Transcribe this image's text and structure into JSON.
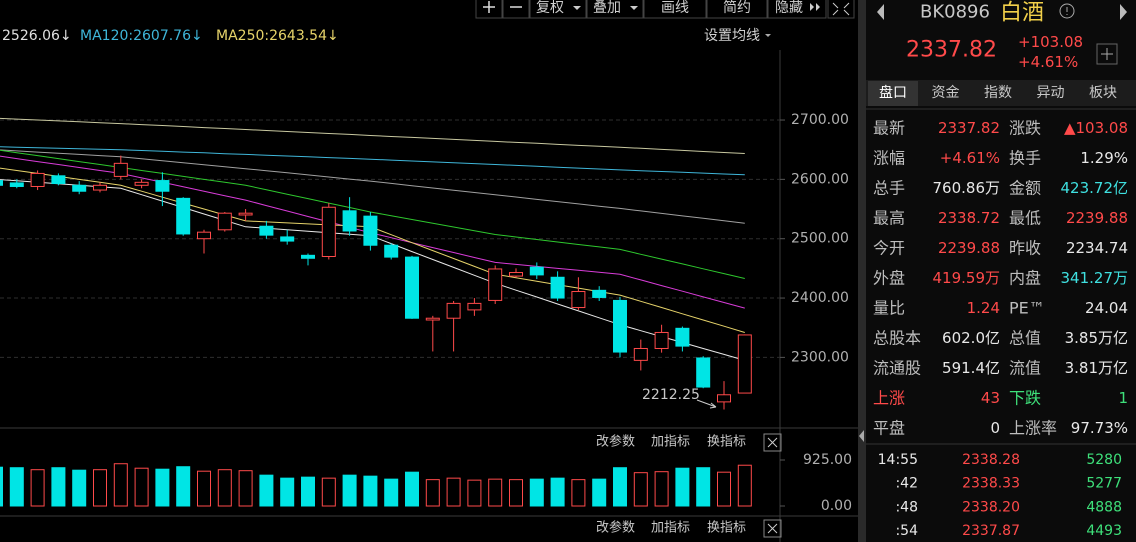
{
  "toolbar": [
    "复权",
    "叠加",
    "画线",
    "简约",
    "隐藏"
  ],
  "ma_legend": [
    {
      "text": "2526.06↓",
      "color": "#e0e0e0"
    },
    {
      "text": "MA120:2607.76↓",
      "color": "#3fb6d9"
    },
    {
      "text": "MA250:2643.54↓",
      "color": "#e6d36a"
    }
  ],
  "ma_settings": "设置均线",
  "chart_data": {
    "type": "candlestick",
    "categories": [
      null,
      null,
      null,
      null,
      null,
      null,
      null,
      null,
      null,
      null,
      null,
      null,
      null,
      null,
      null,
      null,
      null,
      null,
      null,
      null,
      null,
      null,
      null,
      null,
      null,
      null,
      null,
      null,
      null,
      null,
      null,
      null,
      null,
      null,
      null,
      null,
      null
    ],
    "open": [
      2598,
      2594,
      2588,
      2606,
      2590,
      2582,
      2605,
      2590,
      2598,
      2568,
      2500,
      2515,
      2540,
      2521,
      2503,
      2472,
      2470,
      2547,
      2538,
      2489,
      2469,
      2363,
      2366,
      2380,
      2396,
      2437,
      2452,
      2435,
      2384,
      2413,
      2396,
      2295,
      2315,
      2349,
      2299,
      2225,
      2239.88
    ],
    "high": [
      2602,
      2600,
      2615,
      2610,
      2597,
      2595,
      2640,
      2600,
      2612,
      2570,
      2515,
      2545,
      2550,
      2530,
      2515,
      2475,
      2560,
      2570,
      2545,
      2492,
      2471,
      2370,
      2395,
      2400,
      2455,
      2450,
      2460,
      2445,
      2435,
      2420,
      2402,
      2330,
      2355,
      2352,
      2302,
      2260,
      2338.72
    ],
    "low": [
      2585,
      2585,
      2582,
      2590,
      2575,
      2578,
      2600,
      2585,
      2555,
      2505,
      2475,
      2512,
      2530,
      2500,
      2490,
      2455,
      2465,
      2505,
      2480,
      2465,
      2365,
      2310,
      2310,
      2370,
      2390,
      2435,
      2432,
      2395,
      2380,
      2395,
      2300,
      2278,
      2308,
      2310,
      2248,
      2212.25,
      2239.88
    ],
    "close": [
      2590,
      2588,
      2610,
      2593,
      2580,
      2590,
      2627,
      2595,
      2580,
      2508,
      2511,
      2543,
      2543,
      2506,
      2496,
      2467,
      2553,
      2513,
      2489,
      2469,
      2366,
      2366,
      2391,
      2391,
      2449,
      2443,
      2439,
      2400,
      2411,
      2401,
      2309,
      2315,
      2342,
      2319,
      2250,
      2237,
      2337.82
    ],
    "up_color": "#ff4a4a",
    "down_color": "#00e5e5",
    "ylim": [
      2181,
      2818
    ],
    "yticks": [
      {
        "value": 2300,
        "label": "2300.00"
      },
      {
        "value": 2400,
        "label": "2400.00"
      },
      {
        "value": 2500,
        "label": "2500.00"
      },
      {
        "value": 2600,
        "label": "2600.00"
      },
      {
        "value": 2700,
        "label": "2700.00"
      }
    ],
    "grid": true,
    "annotation": "2212.25",
    "ma_lines": [
      {
        "color": "#c8c8a0",
        "values": [
          2703,
          2701.5,
          2700,
          2698.5,
          2697,
          2695.5,
          2694,
          2692.3,
          2690.7,
          2689,
          2687.3,
          2685.7,
          2684,
          2682.3,
          2680.7,
          2679,
          2677.3,
          2675.7,
          2674,
          2672.3,
          2670.7,
          2669,
          2667.3,
          2665.7,
          2664,
          2662.3,
          2660.7,
          2659,
          2657.3,
          2655.7,
          2654,
          2652.3,
          2650.5,
          2648.8,
          2647,
          2645.3,
          2643.54
        ]
      },
      {
        "color": "#3fb6d9",
        "values": [
          2655,
          2654.2,
          2653.3,
          2652.5,
          2651.7,
          2650.8,
          2650,
          2648.7,
          2647.3,
          2646,
          2644.7,
          2643.3,
          2642,
          2640.7,
          2639.3,
          2638,
          2636.7,
          2635.3,
          2634,
          2632.5,
          2631,
          2629.5,
          2628,
          2626.5,
          2625,
          2623.5,
          2622,
          2620.5,
          2619,
          2617.5,
          2616,
          2614.6,
          2613.3,
          2611.9,
          2610.5,
          2609.1,
          2607.76
        ]
      },
      {
        "color": "#a0a0a0",
        "values": [
          2650,
          2648,
          2646,
          2644,
          2642,
          2640,
          2638,
          2634.7,
          2631.3,
          2628,
          2624.7,
          2621.3,
          2618,
          2614.5,
          2611,
          2607.5,
          2604,
          2600.5,
          2597,
          2593.2,
          2589.3,
          2585.5,
          2581.7,
          2577.8,
          2574,
          2570.2,
          2566.3,
          2562.5,
          2558.7,
          2554.8,
          2551,
          2546.8,
          2542.7,
          2538.5,
          2534.3,
          2530.2,
          2526.06
        ]
      },
      {
        "color": "#2ec72e",
        "values": [
          2650,
          2645,
          2640,
          2635,
          2630,
          2625,
          2620,
          2615,
          2610,
          2605,
          2600,
          2595,
          2590,
          2582.5,
          2575,
          2567.5,
          2560,
          2552.5,
          2545,
          2538.7,
          2532.3,
          2526,
          2519.7,
          2513.3,
          2507,
          2502.8,
          2498.7,
          2494.5,
          2490.3,
          2486.2,
          2482,
          2473.8,
          2465.7,
          2457.5,
          2449.3,
          2441.2,
          2433
        ]
      },
      {
        "color": "#d83cd8",
        "values": [
          2640,
          2635,
          2630,
          2625,
          2620,
          2615,
          2610,
          2602.5,
          2595,
          2587.5,
          2580,
          2572.5,
          2565,
          2555.8,
          2546.7,
          2537.5,
          2528.3,
          2519.2,
          2510,
          2501.7,
          2493.3,
          2485,
          2476.7,
          2468.3,
          2460,
          2456.7,
          2453.3,
          2450,
          2446.7,
          2443.3,
          2440,
          2430.5,
          2421,
          2411.5,
          2402,
          2392.5,
          2383
        ]
      },
      {
        "color": "#e6d36a",
        "values": [
          2620,
          2615,
          2610,
          2605,
          2600,
          2595,
          2590,
          2580,
          2570,
          2560,
          2550,
          2540,
          2530,
          2528.3,
          2526.7,
          2525,
          2523.3,
          2521.7,
          2520,
          2506.7,
          2493.3,
          2480,
          2466.7,
          2453.3,
          2440,
          2434.2,
          2428.3,
          2422.5,
          2416.7,
          2410.8,
          2405,
          2394.5,
          2384,
          2373.5,
          2363,
          2352.5,
          2342
        ]
      },
      {
        "color": "#e8e8e8",
        "values": [
          2600,
          2597.5,
          2595,
          2592.5,
          2590,
          2587.5,
          2585,
          2574.2,
          2563.3,
          2552.5,
          2541.7,
          2530.8,
          2520,
          2517.5,
          2515,
          2512.5,
          2510,
          2507.5,
          2505,
          2491.7,
          2478.3,
          2465,
          2451.7,
          2438.3,
          2425,
          2413.3,
          2401.7,
          2390,
          2378.3,
          2366.7,
          2355,
          2345,
          2335,
          2325,
          2315,
          2305,
          2295
        ]
      }
    ],
    "volume": {
      "values": [
        780,
        770,
        730,
        770,
        720,
        730,
        850,
        760,
        740,
        790,
        700,
        730,
        710,
        620,
        560,
        580,
        560,
        620,
        600,
        540,
        680,
        530,
        560,
        520,
        540,
        530,
        540,
        560,
        530,
        540,
        770,
        670,
        690,
        760,
        770,
        680,
        820
      ],
      "ylim": [
        0,
        925
      ],
      "yticks": [
        {
          "value": 0,
          "label": "0.00"
        },
        {
          "value": 925,
          "label": "925.00"
        }
      ]
    }
  },
  "volume_panel_buttons": [
    "改参数",
    "加指标",
    "换指标"
  ],
  "lower_panel_buttons": [
    "改参数",
    "加指标",
    "换指标"
  ],
  "quote": {
    "code": "BK0896",
    "name": "白酒",
    "price": "2337.82",
    "change": "+103.08",
    "change_pct": "+4.61%"
  },
  "tabs": [
    "盘口",
    "资金",
    "指数",
    "异动",
    "板块"
  ],
  "stats": [
    [
      "最新",
      "2337.82",
      "涨跌",
      "▲103.08"
    ],
    [
      "涨幅",
      "+4.61%",
      "换手",
      "1.29%"
    ],
    [
      "总手",
      "760.86万",
      "金额",
      "423.72亿"
    ],
    [
      "最高",
      "2338.72",
      "最低",
      "2239.88"
    ],
    [
      "今开",
      "2239.88",
      "昨收",
      "2234.74"
    ],
    [
      "外盘",
      "419.59万",
      "内盘",
      "341.27万"
    ],
    [
      "量比",
      "1.24",
      "PE™",
      "24.04"
    ],
    [
      "总股本",
      "602.0亿",
      "总值",
      "3.85万亿"
    ],
    [
      "流通股",
      "591.4亿",
      "流值",
      "3.81万亿"
    ],
    [
      "上涨",
      "43",
      "下跌",
      "1"
    ],
    [
      "平盘",
      "0",
      "上涨率",
      "97.73%"
    ]
  ],
  "trades": [
    [
      "14:55",
      "2338.28",
      "5280"
    ],
    [
      ":42",
      "2338.33",
      "5277"
    ],
    [
      ":48",
      "2338.20",
      "4888"
    ],
    [
      ":54",
      "2337.87",
      "4493"
    ]
  ]
}
